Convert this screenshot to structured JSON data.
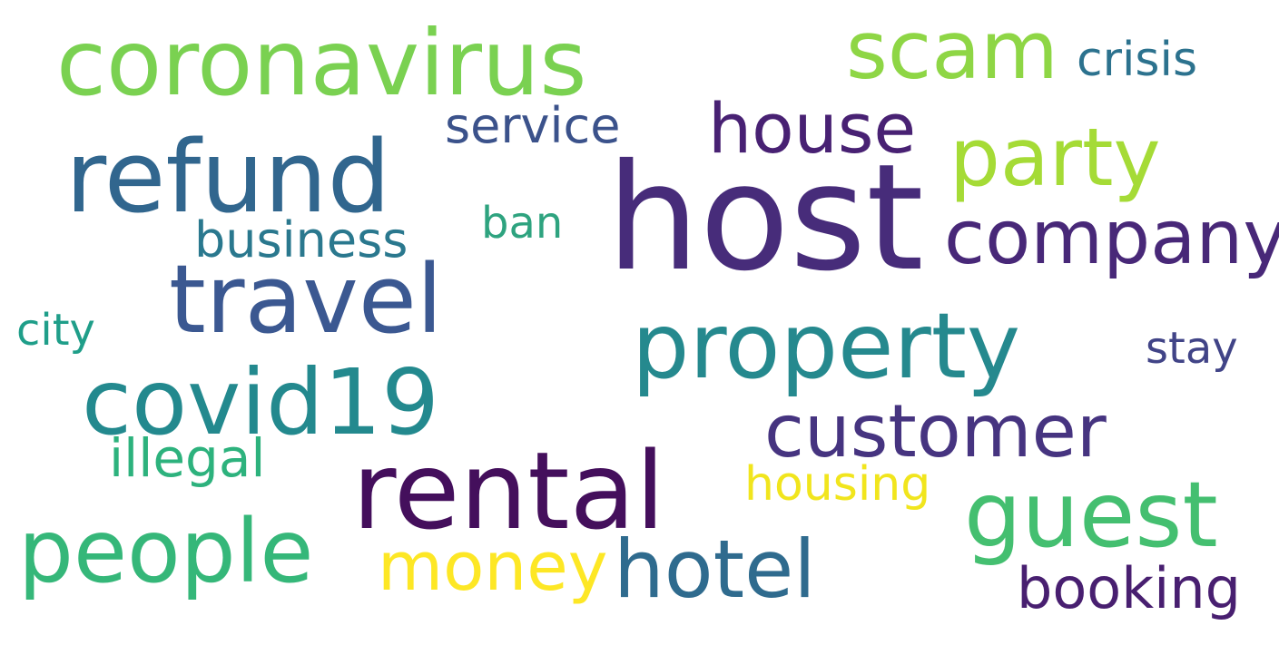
{
  "words": {
    "host": {
      "text": "host",
      "color": "#472c7a"
    },
    "rental": {
      "text": "rental",
      "color": "#440f5c"
    },
    "refund": {
      "text": "refund",
      "color": "#31668e"
    },
    "coronavirus": {
      "text": "coronavirus",
      "color": "#7ad151"
    },
    "travel": {
      "text": "travel",
      "color": "#3b5891"
    },
    "property": {
      "text": "property",
      "color": "#25898e"
    },
    "covid19": {
      "text": "covid19",
      "color": "#23898e"
    },
    "people": {
      "text": "people",
      "color": "#35b779"
    },
    "guest": {
      "text": "guest",
      "color": "#44bf70"
    },
    "scam": {
      "text": "scam",
      "color": "#8ed645"
    },
    "party": {
      "text": "party",
      "color": "#a5db36"
    },
    "company": {
      "text": "company",
      "color": "#482878"
    },
    "customer": {
      "text": "customer",
      "color": "#463480"
    },
    "hotel": {
      "text": "hotel",
      "color": "#2f6b8e"
    },
    "house": {
      "text": "house",
      "color": "#482173"
    },
    "money": {
      "text": "money",
      "color": "#fde725"
    },
    "booking": {
      "text": "booking",
      "color": "#481f70"
    },
    "service": {
      "text": "service",
      "color": "#3b528b"
    },
    "business": {
      "text": "business",
      "color": "#2a788e"
    },
    "illegal": {
      "text": "illegal",
      "color": "#2db27d"
    },
    "housing": {
      "text": "housing",
      "color": "#f1e51d"
    },
    "crisis": {
      "text": "crisis",
      "color": "#2c728e"
    },
    "ban": {
      "text": "ban",
      "color": "#2ea37f"
    },
    "city": {
      "text": "city",
      "color": "#1f9e89"
    },
    "stay": {
      "text": "stay",
      "color": "#414487"
    }
  }
}
